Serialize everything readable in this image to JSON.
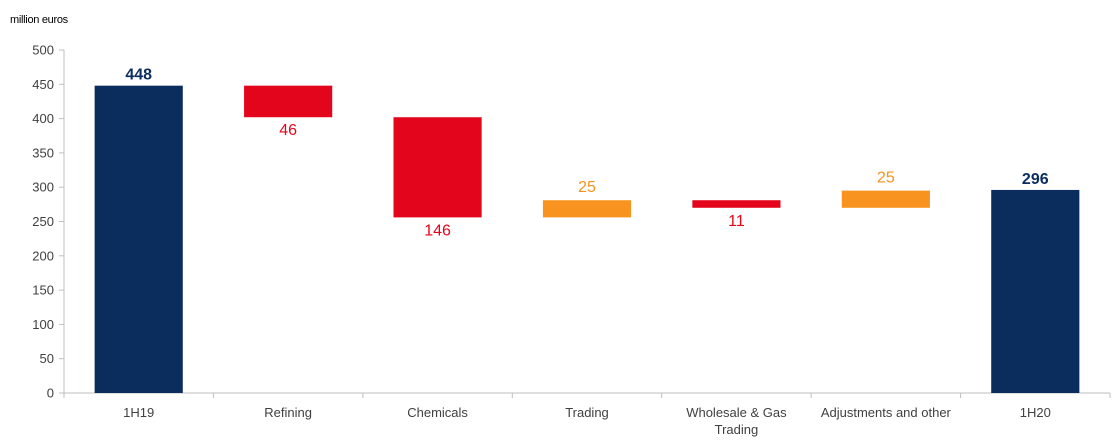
{
  "chart_data": {
    "type": "bar",
    "subtype": "waterfall",
    "unit_label": "million euros",
    "ylim": [
      0,
      500
    ],
    "yticks": [
      0,
      50,
      100,
      150,
      200,
      250,
      300,
      350,
      400,
      450,
      500
    ],
    "grid": false,
    "categories": [
      "1H19",
      "Refining",
      "Chemicals",
      "Trading",
      "Wholesale & Gas Trading",
      "Adjustments and other",
      "1H20"
    ],
    "category_lines": [
      [
        "1H19"
      ],
      [
        "Refining"
      ],
      [
        "Chemicals"
      ],
      [
        "Trading"
      ],
      [
        "Wholesale & Gas",
        "Trading"
      ],
      [
        "Adjustments and other"
      ],
      [
        "1H20"
      ]
    ],
    "steps": [
      {
        "kind": "total",
        "value": 448,
        "label": "448"
      },
      {
        "kind": "decrease",
        "value": -46,
        "label": "46"
      },
      {
        "kind": "decrease",
        "value": -146,
        "label": "146"
      },
      {
        "kind": "increase",
        "value": 25,
        "label": "25"
      },
      {
        "kind": "decrease",
        "value": -11,
        "label": "11"
      },
      {
        "kind": "increase",
        "value": 25,
        "label": "25"
      },
      {
        "kind": "total",
        "value": 296,
        "label": "296"
      }
    ],
    "colors": {
      "total": "#0b2d5e",
      "decrease": "#e3051b",
      "increase": "#f7931e",
      "axis": "#bfbfbf"
    }
  }
}
